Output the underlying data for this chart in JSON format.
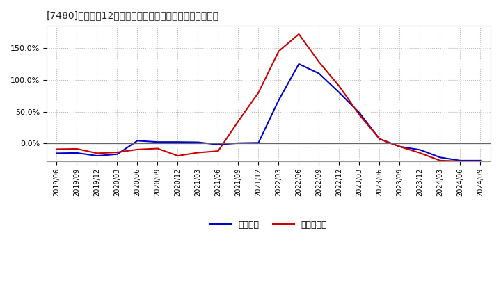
{
  "title": "[7480]　利益だ12か月移動合計の対前年同期増減率の推移",
  "x_labels": [
    "2019/06",
    "2019/09",
    "2019/12",
    "2020/03",
    "2020/06",
    "2020/09",
    "2020/12",
    "2021/03",
    "2021/06",
    "2021/09",
    "2021/12",
    "2022/03",
    "2022/06",
    "2022/09",
    "2022/12",
    "2023/03",
    "2023/06",
    "2023/09",
    "2023/12",
    "2024/03",
    "2024/06",
    "2024/09"
  ],
  "keijo_rieki": [
    -0.155,
    -0.15,
    -0.195,
    -0.17,
    0.042,
    0.022,
    0.022,
    0.018,
    -0.018,
    0.005,
    0.01,
    0.68,
    1.25,
    1.1,
    0.8,
    0.48,
    0.07,
    -0.05,
    -0.1,
    -0.22,
    -0.27,
    -0.27
  ],
  "toki_jun_rieki": [
    -0.09,
    -0.085,
    -0.155,
    -0.14,
    -0.095,
    -0.08,
    -0.195,
    -0.145,
    -0.12,
    0.35,
    0.8,
    1.45,
    1.72,
    1.28,
    0.9,
    0.45,
    0.07,
    -0.05,
    -0.15,
    -0.27,
    -0.28,
    -0.28
  ],
  "keijo_color": "#0000cc",
  "toki_color": "#cc0000",
  "bg_color": "#ffffff",
  "plot_bg_color": "#ffffff",
  "grid_color": "#bbbbbb",
  "yticks": [
    0.0,
    0.5,
    1.0,
    1.5
  ],
  "ylim": [
    -0.28,
    1.85
  ],
  "legend_keijo": "経常利益",
  "legend_toki": "当期純利益"
}
